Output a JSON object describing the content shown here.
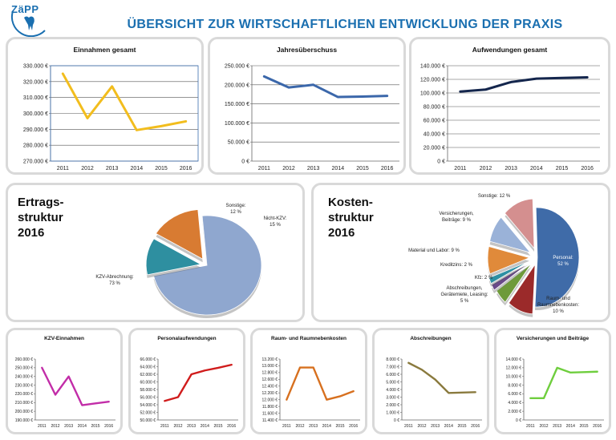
{
  "header": {
    "logo_text": "ZäPP",
    "title": "ÜBERSICHT ZUR WIRTSCHAFTLICHEN ENTWICKLUNG DER PRAXIS"
  },
  "colors": {
    "einnahmen": "#f2bd1d",
    "ueberschuss": "#3b67aa",
    "aufwendungen": "#14264d",
    "kzv": "#c22da8",
    "personal": "#d01c1c",
    "raum": "#d7701f",
    "abschreibungen": "#8a7a3e",
    "versicherungen": "#6fce3e"
  },
  "chart_data": [
    {
      "id": "einnahmen",
      "type": "line",
      "title": "Einnahmen gesamt",
      "categories": [
        "2011",
        "2012",
        "2013",
        "2014",
        "2015",
        "2016"
      ],
      "y_ticks": [
        "270.000 €",
        "280.000 €",
        "290.000 €",
        "300.000 €",
        "310.000 €",
        "320.000 €",
        "330.000 €"
      ],
      "ylim": [
        270000,
        330000
      ],
      "values": [
        325000,
        297000,
        317000,
        289500,
        292000,
        295000
      ],
      "grid": true,
      "plot_border": true
    },
    {
      "id": "ueberschuss",
      "type": "line",
      "title": "Jahresüberschuss",
      "categories": [
        "2011",
        "2012",
        "2013",
        "2014",
        "2015",
        "2016"
      ],
      "y_ticks": [
        "0 €",
        "50.000 €",
        "100.000 €",
        "150.000 €",
        "200.000 €",
        "250.000 €"
      ],
      "ylim": [
        0,
        250000
      ],
      "values": [
        222000,
        193000,
        200000,
        168000,
        169000,
        171000
      ],
      "grid": true
    },
    {
      "id": "aufwendungen",
      "type": "line",
      "title": "Aufwendungen gesamt",
      "categories": [
        "2011",
        "2012",
        "2013",
        "2014",
        "2015",
        "2016"
      ],
      "y_ticks": [
        "0 €",
        "20.000 €",
        "40.000 €",
        "60.000 €",
        "80.000 €",
        "100.000 €",
        "120.000 €",
        "140.000 €"
      ],
      "ylim": [
        0,
        140000
      ],
      "values": [
        102000,
        105000,
        116000,
        121000,
        122000,
        123000
      ],
      "grid": true
    },
    {
      "id": "ertragsstruktur",
      "type": "pie",
      "title": [
        "Ertrags-",
        "struktur",
        "2016"
      ],
      "slices": [
        {
          "label": [
            "KZV-Abrechnung:",
            "73 %"
          ],
          "value": 73,
          "color": "#8fa7cf"
        },
        {
          "label": [
            "Sonstige:",
            "12 %"
          ],
          "value": 12,
          "color": "#2e8fa0"
        },
        {
          "label": [
            "Nicht-KZV:",
            "15 %"
          ],
          "value": 15,
          "color": "#d87b32"
        }
      ]
    },
    {
      "id": "kostenstruktur",
      "type": "pie",
      "title": [
        "Kosten-",
        "struktur",
        "2016"
      ],
      "slices": [
        {
          "label": [
            "Personal:",
            "52 %"
          ],
          "value": 52,
          "color": "#3f6ba8"
        },
        {
          "label": [
            "Raum- und",
            "Raumnebenkosten:",
            "10 %"
          ],
          "value": 10,
          "color": "#9b2a2a"
        },
        {
          "label": [
            "Abschreibungen,",
            "Gerätemiete, Leasing:",
            "5 %"
          ],
          "value": 5,
          "color": "#6e9a3a"
        },
        {
          "label": [
            "Kfz: 2 %"
          ],
          "value": 2,
          "color": "#6a4a8a"
        },
        {
          "label": [
            "Kreditzins: 2 %"
          ],
          "value": 2,
          "color": "#2e90a3"
        },
        {
          "label": [
            "Material und Labor: 9 %"
          ],
          "value": 9,
          "color": "#e08a3a"
        },
        {
          "label": [
            "Versicherungen,",
            "Beiträge: 9 %"
          ],
          "value": 9,
          "color": "#9ab2d8"
        },
        {
          "label": [
            "Sonstige: 12 %"
          ],
          "value": 12,
          "color": "#d48f8f"
        }
      ]
    },
    {
      "id": "kzv",
      "type": "line",
      "title": "KZV-Einnahmen",
      "categories": [
        "2011",
        "2012",
        "2013",
        "2014",
        "2015",
        "2016"
      ],
      "y_ticks": [
        "190.000 €",
        "200.000 €",
        "210.000 €",
        "220.000 €",
        "230.000 €",
        "240.000 €",
        "250.000 €",
        "260.000 €"
      ],
      "ylim": [
        190000,
        260000
      ],
      "values": [
        250000,
        219000,
        240000,
        207000,
        209000,
        211000
      ],
      "grid": false
    },
    {
      "id": "personal",
      "type": "line",
      "title": "Personalaufwendungen",
      "categories": [
        "2011",
        "2012",
        "2013",
        "2014",
        "2015",
        "2016"
      ],
      "y_ticks": [
        "50.000 €",
        "52.000 €",
        "54.000 €",
        "56.000 €",
        "58.000 €",
        "60.000 €",
        "62.000 €",
        "64.000 €",
        "66.000 €"
      ],
      "ylim": [
        50000,
        66000
      ],
      "values": [
        55000,
        56000,
        62000,
        63000,
        63700,
        64500
      ],
      "grid": false
    },
    {
      "id": "raum",
      "type": "line",
      "title": "Raum- und Raumnebenkosten",
      "categories": [
        "2011",
        "2012",
        "2013",
        "2014",
        "2015",
        "2016"
      ],
      "y_ticks": [
        "11.400 €",
        "11.600 €",
        "11.800 €",
        "12.000 €",
        "12.200 €",
        "12.400 €",
        "12.600 €",
        "12.800 €",
        "13.000 €",
        "13.200 €"
      ],
      "ylim": [
        11400,
        13200
      ],
      "values": [
        12000,
        12950,
        12950,
        12000,
        12100,
        12250
      ],
      "grid": false
    },
    {
      "id": "abschreibungen",
      "type": "line",
      "title": "Abschreibungen",
      "categories": [
        "2011",
        "2012",
        "2013",
        "2014",
        "2015",
        "2016"
      ],
      "y_ticks": [
        "0 €",
        "1.000 €",
        "2.000 €",
        "3.000 €",
        "4.000 €",
        "5.000 €",
        "6.000 €",
        "7.000 €",
        "8.000 €"
      ],
      "ylim": [
        0,
        8000
      ],
      "values": [
        7500,
        6600,
        5300,
        3550,
        3600,
        3650
      ],
      "grid": false
    },
    {
      "id": "versicherungen",
      "type": "line",
      "title": "Versicherungen und Beiträge",
      "categories": [
        "2011",
        "2012",
        "2013",
        "2014",
        "2015",
        "2016"
      ],
      "y_ticks": [
        "0 €",
        "2.000 €",
        "4.000 €",
        "6.000 €",
        "8.000 €",
        "10.000 €",
        "12.000 €",
        "14.000 €"
      ],
      "ylim": [
        0,
        14000
      ],
      "values": [
        5000,
        5000,
        12000,
        10900,
        11000,
        11100
      ],
      "grid": false
    }
  ]
}
